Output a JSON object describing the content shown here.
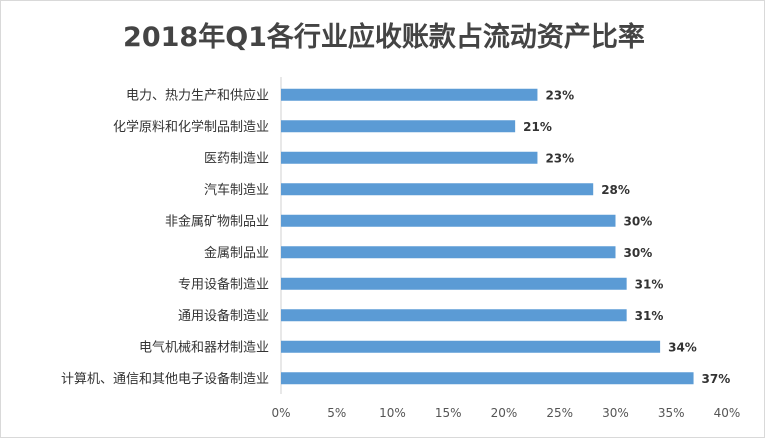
{
  "chart_data": {
    "type": "bar",
    "orientation": "horizontal",
    "title": "2018年Q1各行业应收账款占流动资产比率",
    "categories": [
      "电力、热力生产和供应业",
      "化学原料和化学制品制造业",
      "医药制造业",
      "汽车制造业",
      "非金属矿物制品业",
      "金属制品业",
      "专用设备制造业",
      "通用设备制造业",
      "电气机械和器材制造业",
      "计算机、通信和其他电子设备制造业"
    ],
    "values": [
      23,
      21,
      23,
      28,
      30,
      30,
      31,
      31,
      34,
      37
    ],
    "value_labels": [
      "23%",
      "21%",
      "23%",
      "28%",
      "30%",
      "30%",
      "31%",
      "31%",
      "34%",
      "37%"
    ],
    "x_ticks": [
      "0%",
      "5%",
      "10%",
      "15%",
      "20%",
      "25%",
      "30%",
      "35%",
      "40%"
    ],
    "xlim": [
      0,
      40
    ],
    "grid": false,
    "bar_color": "#5b9bd5"
  }
}
